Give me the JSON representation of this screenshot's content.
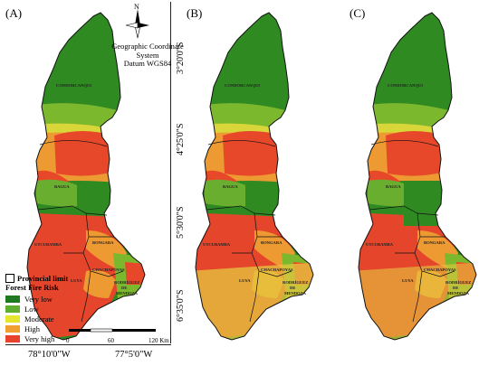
{
  "panels": [
    "(A)",
    "(B)",
    "(C)"
  ],
  "lat_labels": [
    "3°20'0\"S",
    "4°25'0\"S",
    "5°30'0\"S",
    "6°35'0\"S"
  ],
  "lon_labels": [
    "78°10'0\"W",
    "77°5'0\"W"
  ],
  "north": "N",
  "coordinate_system": [
    "Geographic Coordinate",
    "System",
    "Datum WGS84"
  ],
  "legend": {
    "boundary": "Provincial limit",
    "title": "Forest Fire Risk",
    "items": [
      {
        "label": "Very low",
        "color": "#1f7a1f"
      },
      {
        "label": "Low",
        "color": "#5fae2e"
      },
      {
        "label": "Moderate",
        "color": "#e6e62e"
      },
      {
        "label": "High",
        "color": "#f0a030"
      },
      {
        "label": "Very high",
        "color": "#e8432a"
      }
    ]
  },
  "scale": {
    "ticks": [
      "0",
      "60",
      "120 Km"
    ]
  },
  "provinces": [
    "CONDORCANQUI",
    "BAGUA",
    "UTCUBAMBA",
    "BONGARA",
    "LUYA",
    "CHACHAPOYAS",
    "RODRÍGUEZ DE MENDOZA"
  ]
}
